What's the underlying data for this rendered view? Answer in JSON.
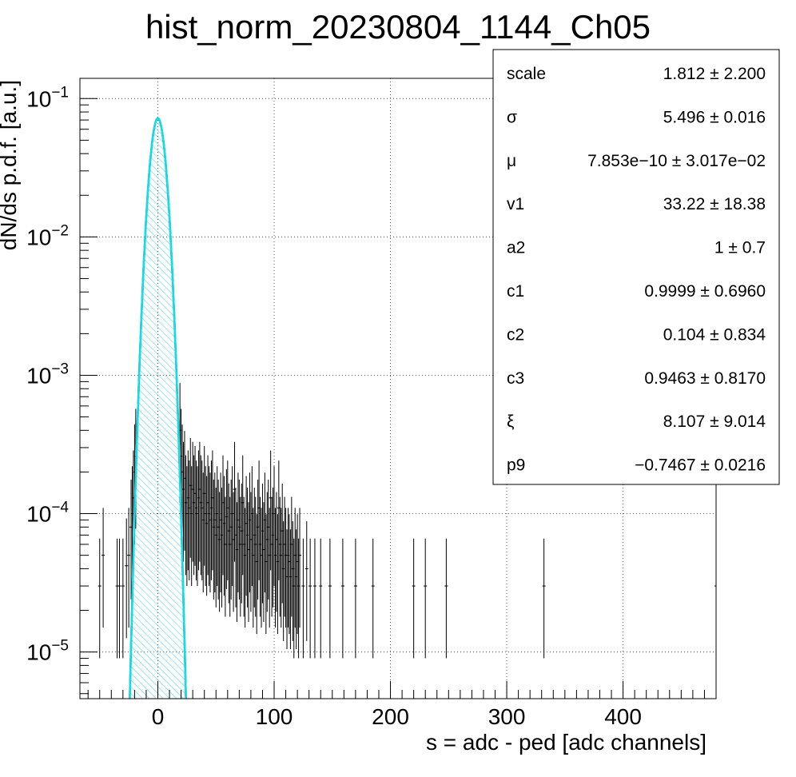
{
  "chart_data": {
    "type": "histogram",
    "title": "hist_norm_20230804_1144_Ch05",
    "xlabel": "s = adc - ped [adc channels]",
    "ylabel": "dN/ds p.d.f. [a.u.]",
    "xlim": [
      -67,
      480
    ],
    "ylim": [
      4.6e-06,
      0.14
    ],
    "y_scale": "log",
    "grid": true,
    "x_ticks": [
      {
        "value": 0,
        "label": "0"
      },
      {
        "value": 100,
        "label": "100"
      },
      {
        "value": 200,
        "label": "200"
      },
      {
        "value": 300,
        "label": "300"
      },
      {
        "value": 400,
        "label": "400"
      }
    ],
    "y_ticks": [
      {
        "value": 1e-05,
        "base": "10",
        "exp": "−5"
      },
      {
        "value": 0.0001,
        "base": "10",
        "exp": "−4"
      },
      {
        "value": 0.001,
        "base": "10",
        "exp": "−3"
      },
      {
        "value": 0.01,
        "base": "10",
        "exp": "−2"
      },
      {
        "value": 0.1,
        "base": "10",
        "exp": "−1"
      }
    ],
    "fit": {
      "amplitude": 0.072,
      "mu": 0.0,
      "sigma": 5.496
    },
    "stats": [
      {
        "name": "scale",
        "value": "1.812 ± 2.200"
      },
      {
        "name": "σ",
        "value": "5.496 ± 0.016"
      },
      {
        "name": "μ",
        "value": "7.853e−10 ± 3.017e−02"
      },
      {
        "name": "v1",
        "value": "33.22 ± 18.38"
      },
      {
        "name": "a2",
        "value": "1 ± 0.7"
      },
      {
        "name": "c1",
        "value": "0.9999 ± 0.6960"
      },
      {
        "name": "c2",
        "value": "0.104 ± 0.834"
      },
      {
        "name": "c3",
        "value": "0.9463 ± 0.8170"
      },
      {
        "name": "ξ",
        "value": "8.107 ± 9.014"
      },
      {
        "name": "p9",
        "value": "−0.7467 ± 0.0216"
      }
    ],
    "tail_points": [
      {
        "x": -50,
        "y": 3e-05
      },
      {
        "x": -47,
        "y": 5e-05
      },
      {
        "x": -35,
        "y": 3e-05
      },
      {
        "x": -33,
        "y": 3e-05
      },
      {
        "x": -30,
        "y": 3e-05
      },
      {
        "x": -27,
        "y": 4.2e-05
      },
      {
        "x": -25,
        "y": 5e-05
      },
      {
        "x": -23,
        "y": 8e-05
      },
      {
        "x": -22,
        "y": 0.0001
      },
      {
        "x": -21,
        "y": 0.00013
      },
      {
        "x": -20,
        "y": 0.0002
      },
      {
        "x": -19,
        "y": 0.00026
      },
      {
        "x": 19,
        "y": 0.0004
      },
      {
        "x": 20,
        "y": 0.00026
      },
      {
        "x": 21,
        "y": 0.0002
      },
      {
        "x": 22,
        "y": 0.00015
      },
      {
        "x": 23,
        "y": 0.00018
      },
      {
        "x": 24,
        "y": 0.00012
      },
      {
        "x": 25,
        "y": 0.0001
      },
      {
        "x": 26,
        "y": 0.00013
      },
      {
        "x": 27,
        "y": 0.00011
      },
      {
        "x": 28,
        "y": 0.00016
      },
      {
        "x": 29,
        "y": 0.0001
      },
      {
        "x": 30,
        "y": 0.00015
      },
      {
        "x": 31,
        "y": 0.00012
      },
      {
        "x": 32,
        "y": 0.00014
      },
      {
        "x": 33,
        "y": 0.00011
      },
      {
        "x": 34,
        "y": 0.0001
      },
      {
        "x": 35,
        "y": 0.00013
      },
      {
        "x": 36,
        "y": 0.00015
      },
      {
        "x": 37,
        "y": 0.00012
      },
      {
        "x": 38,
        "y": 0.00011
      },
      {
        "x": 39,
        "y": 9e-05
      },
      {
        "x": 40,
        "y": 0.00014
      },
      {
        "x": 41,
        "y": 0.0001
      },
      {
        "x": 42,
        "y": 8.5e-05
      },
      {
        "x": 43,
        "y": 0.00012
      },
      {
        "x": 44,
        "y": 0.0001
      },
      {
        "x": 45,
        "y": 9e-05
      },
      {
        "x": 46,
        "y": 0.00011
      },
      {
        "x": 47,
        "y": 0.00013
      },
      {
        "x": 48,
        "y": 8e-05
      },
      {
        "x": 49,
        "y": 9e-05
      },
      {
        "x": 50,
        "y": 7e-05
      },
      {
        "x": 51,
        "y": 0.0001
      },
      {
        "x": 52,
        "y": 8e-05
      },
      {
        "x": 53,
        "y": 6.5e-05
      },
      {
        "x": 54,
        "y": 9e-05
      },
      {
        "x": 55,
        "y": 7e-05
      },
      {
        "x": 56,
        "y": 0.00012
      },
      {
        "x": 57,
        "y": 8.5e-05
      },
      {
        "x": 58,
        "y": 6e-05
      },
      {
        "x": 59,
        "y": 9.5e-05
      },
      {
        "x": 60,
        "y": 0.00011
      },
      {
        "x": 61,
        "y": 7.5e-05
      },
      {
        "x": 62,
        "y": 6e-05
      },
      {
        "x": 63,
        "y": 8e-05
      },
      {
        "x": 64,
        "y": 0.0001
      },
      {
        "x": 65,
        "y": 6.5e-05
      },
      {
        "x": 66,
        "y": 0.00015
      },
      {
        "x": 67,
        "y": 7e-05
      },
      {
        "x": 68,
        "y": 5.5e-05
      },
      {
        "x": 69,
        "y": 9e-05
      },
      {
        "x": 70,
        "y": 8e-05
      },
      {
        "x": 71,
        "y": 6e-05
      },
      {
        "x": 72,
        "y": 7.5e-05
      },
      {
        "x": 73,
        "y": 0.00012
      },
      {
        "x": 74,
        "y": 6e-05
      },
      {
        "x": 75,
        "y": 5e-05
      },
      {
        "x": 76,
        "y": 8.5e-05
      },
      {
        "x": 77,
        "y": 7e-05
      },
      {
        "x": 78,
        "y": 5.5e-05
      },
      {
        "x": 79,
        "y": 9e-05
      },
      {
        "x": 80,
        "y": 6.5e-05
      },
      {
        "x": 81,
        "y": 0.0001
      },
      {
        "x": 82,
        "y": 5e-05
      },
      {
        "x": 83,
        "y": 7e-05
      },
      {
        "x": 84,
        "y": 6e-05
      },
      {
        "x": 85,
        "y": 4.5e-05
      },
      {
        "x": 86,
        "y": 8e-05
      },
      {
        "x": 87,
        "y": 0.00011
      },
      {
        "x": 88,
        "y": 6e-05
      },
      {
        "x": 89,
        "y": 5e-05
      },
      {
        "x": 90,
        "y": 7.5e-05
      },
      {
        "x": 91,
        "y": 5.5e-05
      },
      {
        "x": 92,
        "y": 9e-05
      },
      {
        "x": 93,
        "y": 4.5e-05
      },
      {
        "x": 94,
        "y": 6.5e-05
      },
      {
        "x": 95,
        "y": 8e-05
      },
      {
        "x": 96,
        "y": 5e-05
      },
      {
        "x": 97,
        "y": 0.00013
      },
      {
        "x": 98,
        "y": 6e-05
      },
      {
        "x": 99,
        "y": 7e-05
      },
      {
        "x": 100,
        "y": 0.0001
      },
      {
        "x": 101,
        "y": 5e-05
      },
      {
        "x": 102,
        "y": 6.5e-05
      },
      {
        "x": 103,
        "y": 4.5e-05
      },
      {
        "x": 104,
        "y": 0.00011
      },
      {
        "x": 105,
        "y": 6e-05
      },
      {
        "x": 106,
        "y": 5e-05
      },
      {
        "x": 107,
        "y": 7.5e-05
      },
      {
        "x": 108,
        "y": 4e-05
      },
      {
        "x": 109,
        "y": 6e-05
      },
      {
        "x": 110,
        "y": 5e-05
      },
      {
        "x": 111,
        "y": 3.5e-05
      },
      {
        "x": 112,
        "y": 5e-05
      },
      {
        "x": 113,
        "y": 4.5e-05
      },
      {
        "x": 114,
        "y": 3.5e-05
      },
      {
        "x": 115,
        "y": 6e-05
      },
      {
        "x": 116,
        "y": 4e-05
      },
      {
        "x": 117,
        "y": 3e-05
      },
      {
        "x": 118,
        "y": 5e-05
      },
      {
        "x": 119,
        "y": 3.5e-05
      },
      {
        "x": 120,
        "y": 4.5e-05
      },
      {
        "x": 121,
        "y": 3e-05
      },
      {
        "x": 122,
        "y": 5e-05
      },
      {
        "x": 125,
        "y": 3e-05
      },
      {
        "x": 128,
        "y": 4e-05
      },
      {
        "x": 131,
        "y": 3e-05
      },
      {
        "x": 135,
        "y": 3e-05
      },
      {
        "x": 140,
        "y": 3e-05
      },
      {
        "x": 148,
        "y": 3e-05
      },
      {
        "x": 159,
        "y": 3e-05
      },
      {
        "x": 170,
        "y": 3e-05
      },
      {
        "x": 185,
        "y": 3e-05
      },
      {
        "x": 220,
        "y": 3e-05
      },
      {
        "x": 230,
        "y": 3e-05
      },
      {
        "x": 248,
        "y": 3e-05
      },
      {
        "x": 332,
        "y": 3e-05
      },
      {
        "x": 480,
        "y": 3e-05
      }
    ]
  }
}
